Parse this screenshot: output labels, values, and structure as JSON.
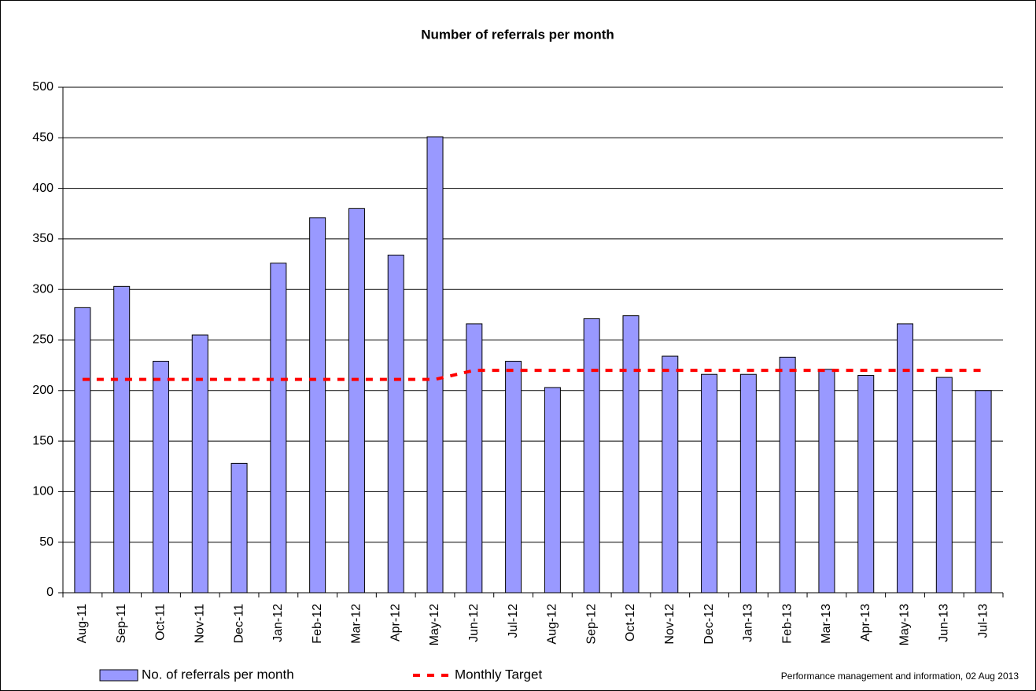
{
  "chart_data": {
    "type": "bar",
    "title": "Number of referrals per month",
    "categories": [
      "Aug-11",
      "Sep-11",
      "Oct-11",
      "Nov-11",
      "Dec-11",
      "Jan-12",
      "Feb-12",
      "Mar-12",
      "Apr-12",
      "May-12",
      "Jun-12",
      "Jul-12",
      "Aug-12",
      "Sep-12",
      "Oct-12",
      "Nov-12",
      "Dec-12",
      "Jan-13",
      "Feb-13",
      "Mar-13",
      "Apr-13",
      "May-13",
      "Jun-13",
      "Jul-13"
    ],
    "series": [
      {
        "name": "No. of referrals per month",
        "type": "bar",
        "color": "#9999ff",
        "values": [
          282,
          303,
          229,
          255,
          128,
          326,
          371,
          380,
          334,
          451,
          266,
          229,
          203,
          271,
          274,
          234,
          216,
          216,
          233,
          221,
          215,
          266,
          213,
          200
        ]
      },
      {
        "name": "Monthly Target",
        "type": "line",
        "line_style": "dashed",
        "color": "#ff0000",
        "values": [
          211,
          211,
          211,
          211,
          211,
          211,
          211,
          211,
          211,
          211,
          220,
          220,
          220,
          220,
          220,
          220,
          220,
          220,
          220,
          220,
          220,
          220,
          220,
          220
        ]
      }
    ],
    "ylim": [
      0,
      500
    ],
    "yticks": [
      0,
      50,
      100,
      150,
      200,
      250,
      300,
      350,
      400,
      450,
      500
    ],
    "grid": true,
    "legend": "bottom",
    "footnote": "Performance management and information, 02 Aug 2013"
  }
}
